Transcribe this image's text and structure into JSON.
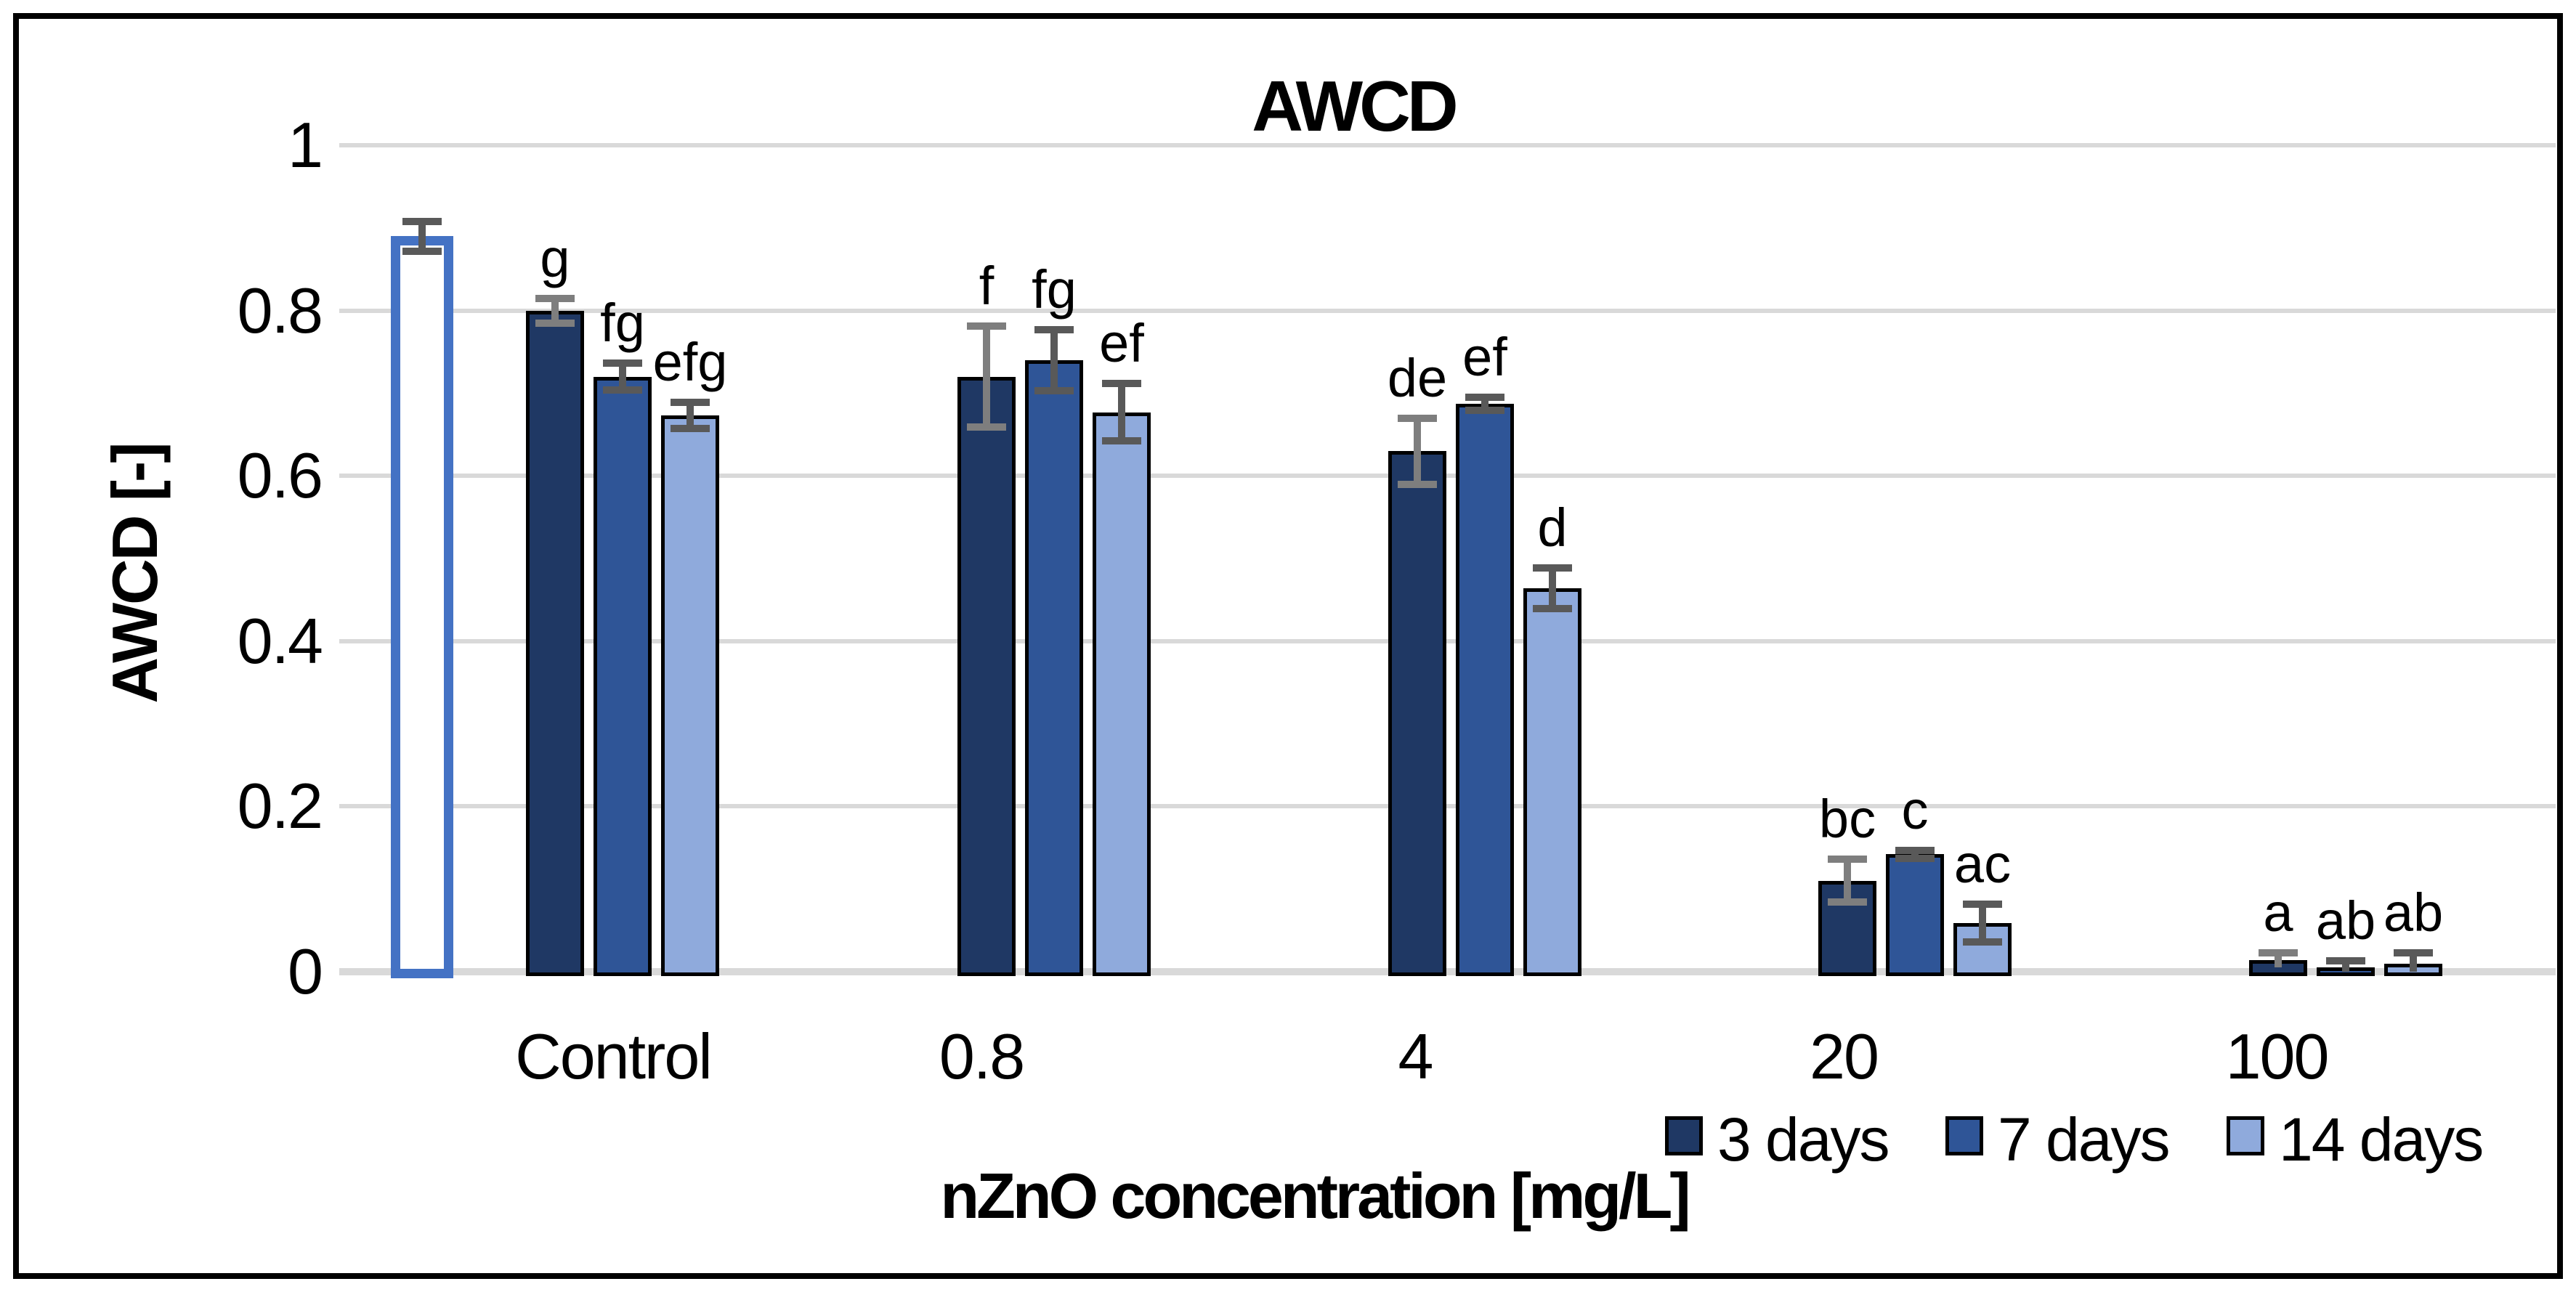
{
  "chart_data": {
    "type": "bar",
    "title": "AWCD",
    "ylabel": "AWCD [-]",
    "xlabel": "nZnO concentration [mg/L]",
    "ylim": [
      0,
      1
    ],
    "grid": true,
    "legend_position": "bottom-right",
    "gridline_color": "#D9D9D9",
    "y_ticks": [
      {
        "label": "1",
        "value": 1.0
      },
      {
        "label": "0.8",
        "value": 0.8
      },
      {
        "label": "0.6",
        "value": 0.6
      },
      {
        "label": "0.4",
        "value": 0.4
      },
      {
        "label": "0.2",
        "value": 0.2
      },
      {
        "label": "0",
        "value": 0.0
      }
    ],
    "categories": [
      "Control",
      "0.8",
      "4",
      "20",
      "100"
    ],
    "reference_bar": {
      "category": "Control",
      "value": 0.89,
      "error": 0.018,
      "style": "outlined",
      "fill": "#FFFFFF",
      "border_color": "#4472C4",
      "error_color": "#595959"
    },
    "series": [
      {
        "name": "3 days",
        "color": "#1F3864",
        "error_color": "#7E7E7E",
        "values": [
          0.8,
          0.72,
          0.63,
          0.11,
          0.014
        ],
        "errors": [
          0.015,
          0.061,
          0.04,
          0.026,
          0.009
        ],
        "letters": [
          "g",
          "f",
          "de",
          "bc",
          "a"
        ]
      },
      {
        "name": "7 days",
        "color": "#2F5597",
        "error_color": "#595959",
        "values": [
          0.72,
          0.74,
          0.687,
          0.142,
          0.005
        ],
        "errors": [
          0.016,
          0.037,
          0.008,
          0.005,
          0.008
        ],
        "letters": [
          "fg",
          "fg",
          "ef",
          "c",
          "ab"
        ]
      },
      {
        "name": "14 days",
        "color": "#8FAADC",
        "error_color": "#595959",
        "values": [
          0.673,
          0.677,
          0.464,
          0.059,
          0.01
        ],
        "errors": [
          0.016,
          0.035,
          0.025,
          0.023,
          0.013
        ],
        "letters": [
          "efg",
          "ef",
          "d",
          "ac",
          "ab"
        ]
      }
    ]
  }
}
